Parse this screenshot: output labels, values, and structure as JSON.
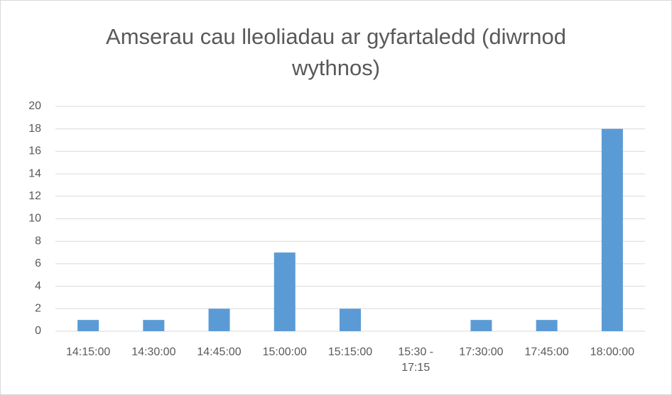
{
  "chart_data": {
    "type": "bar",
    "title": "Amserau cau lleoliadau ar gyfartaledd (diwrnod wythnos)",
    "categories": [
      "14:15:00",
      "14:30:00",
      "14:45:00",
      "15:00:00",
      "15:15:00",
      "15:30 - 17:15",
      "17:30:00",
      "17:45:00",
      "18:00:00"
    ],
    "values": [
      1,
      1,
      2,
      7,
      2,
      0,
      1,
      1,
      18
    ],
    "color": "#5b9bd5",
    "ylim": [
      0,
      20
    ],
    "yticks": [
      0,
      2,
      4,
      6,
      8,
      10,
      12,
      14,
      16,
      18,
      20
    ],
    "grid": true
  }
}
